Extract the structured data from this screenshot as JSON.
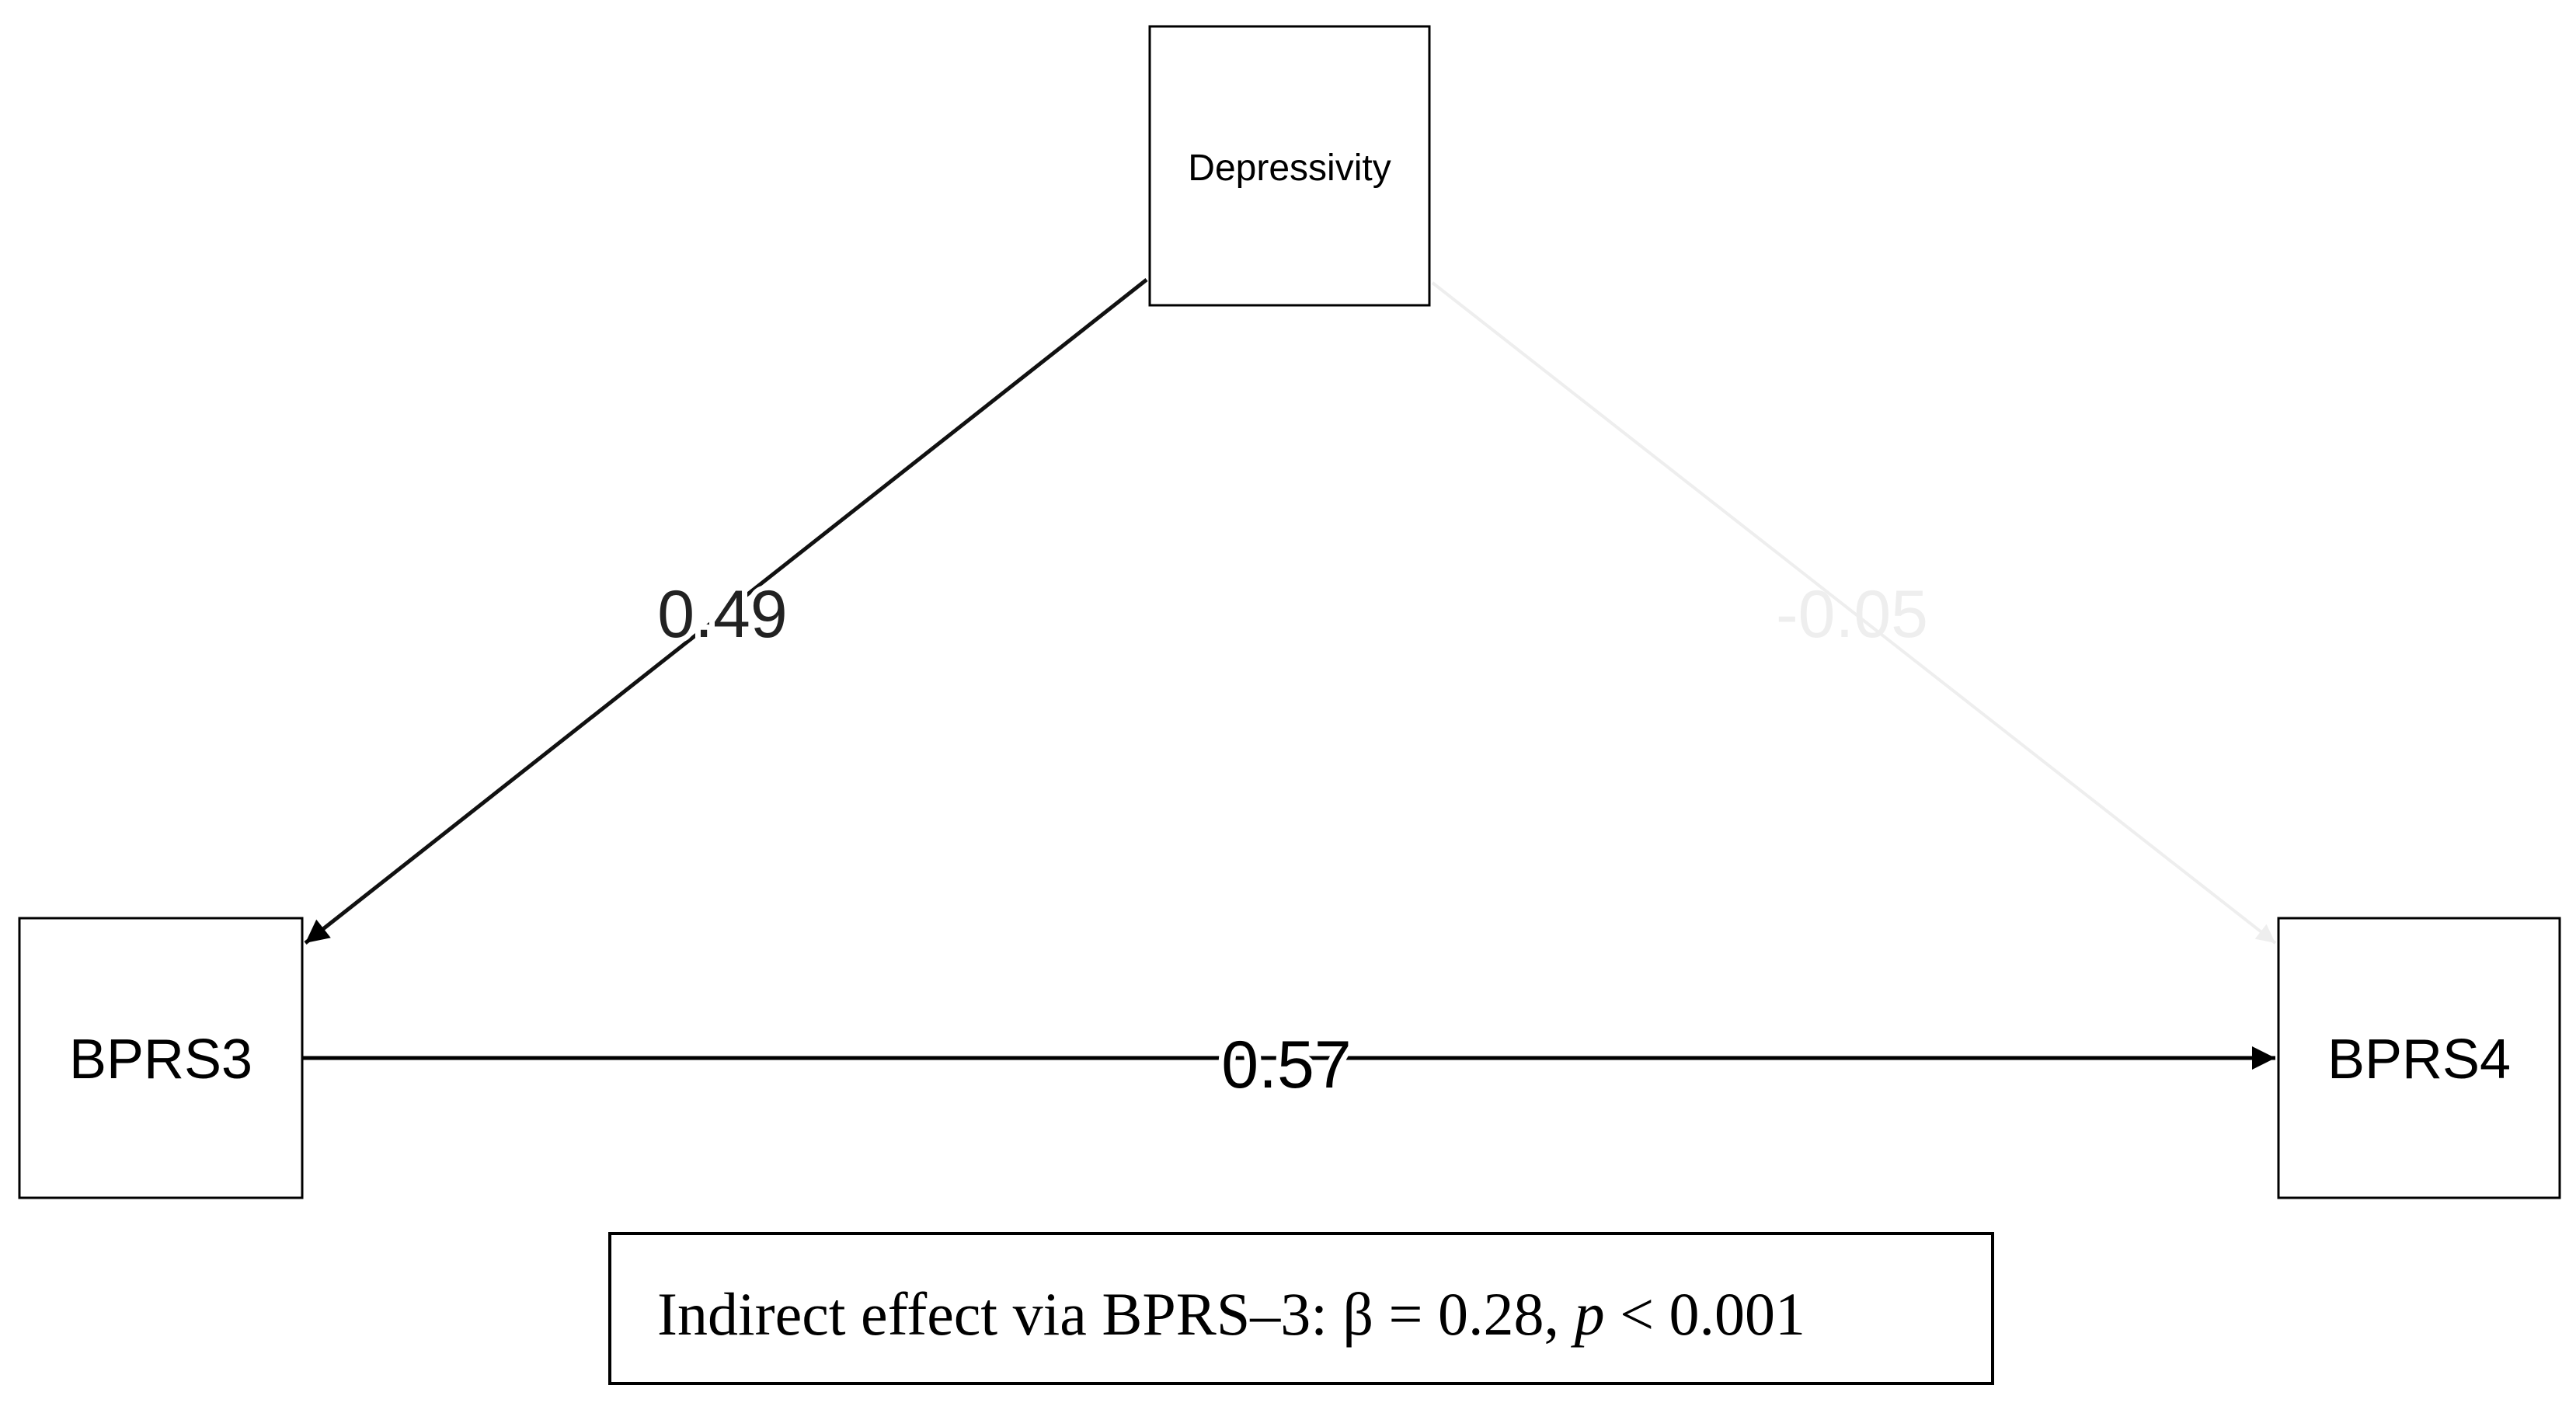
{
  "nodes": [
    {
      "label": "Depressivity"
    },
    {
      "label": "BPRS3"
    },
    {
      "label": "BPRS4"
    }
  ],
  "edges": [
    {
      "label": "0.49"
    },
    {
      "label": "-0.05"
    },
    {
      "label": "0.57"
    }
  ],
  "note": {
    "before": "Indirect effect via BPRS–3: β = 0.28,",
    "italic": "p",
    "after": "< 0.001"
  }
}
